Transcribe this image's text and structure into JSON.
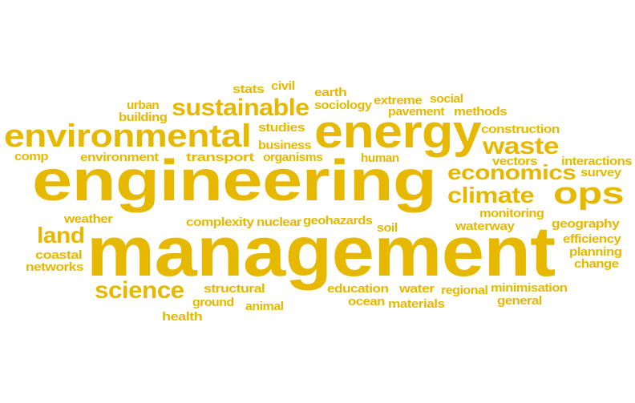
{
  "colors": {
    "word": "#e6b800",
    "background": "#ffffff"
  },
  "words": [
    "engineering",
    "management",
    "energy",
    "environmental",
    "sustainable",
    "ops",
    "waste",
    "economics",
    "climate",
    "science",
    "land",
    "stats",
    "civil",
    "earth",
    "urban",
    "building",
    "extreme",
    "social",
    "sociology",
    "pavement",
    "methods",
    "studies",
    "construction",
    "business",
    "comp",
    "environment",
    "transport",
    "organisms",
    "human",
    "vectors",
    "interactions",
    "survey",
    "monitoring",
    "weather",
    "complexity",
    "nuclear",
    "geohazards",
    "soil",
    "waterway",
    "geography",
    "efficiency",
    "coastal",
    "planning",
    "networks",
    "change",
    "structural",
    "education",
    "water",
    "regional",
    "minimisation",
    "ground",
    "animal",
    "ocean",
    "materials",
    "general",
    "health"
  ]
}
